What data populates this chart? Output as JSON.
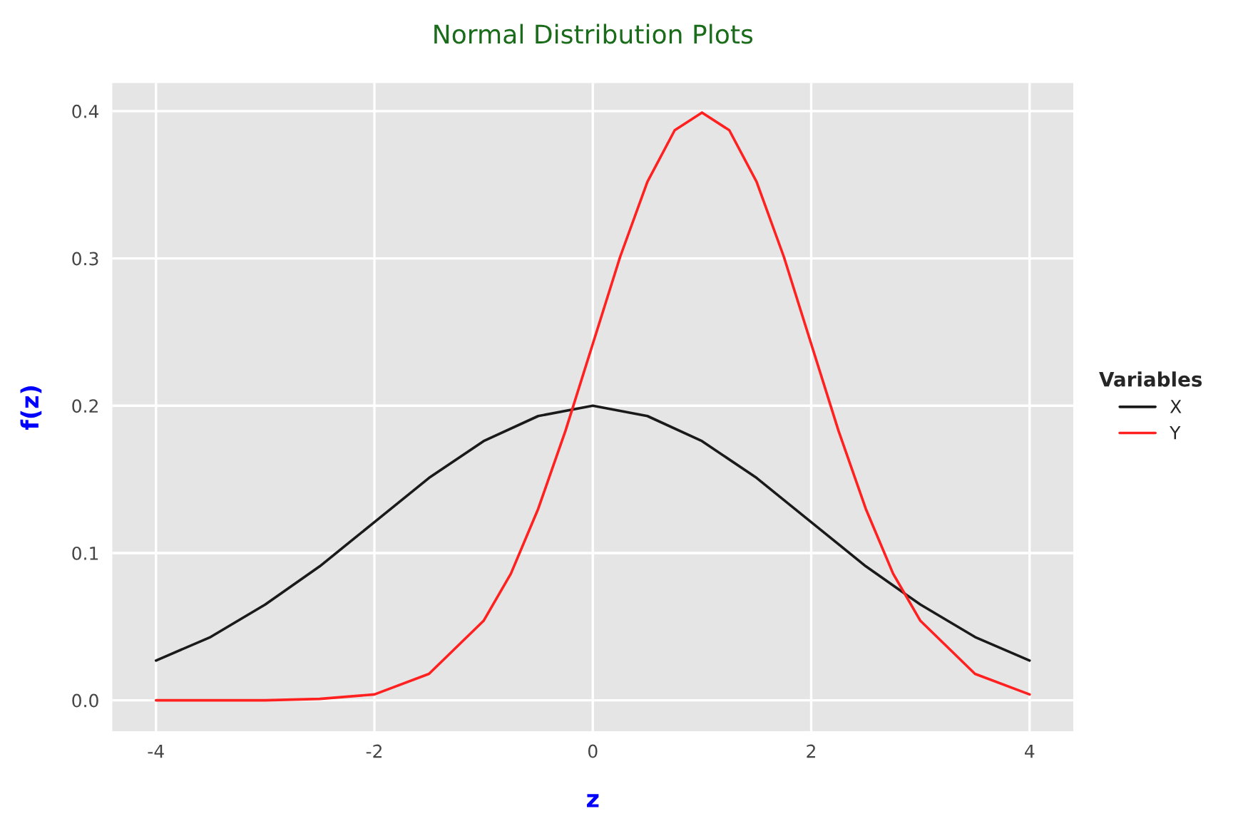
{
  "chart_data": {
    "type": "line",
    "title": "Normal Distribution Plots",
    "xlabel": "z",
    "ylabel": "f(z)",
    "legend_title": "Variables",
    "legend": "right",
    "grid": true,
    "xlim": [
      -4.4,
      4.4
    ],
    "ylim": [
      -0.021,
      0.419
    ],
    "xticks": [
      -4,
      -2,
      0,
      2,
      4
    ],
    "yticks": [
      {
        "value": 0,
        "label": "0.0"
      },
      0.1,
      0.2,
      0.3,
      0.4
    ],
    "series": [
      {
        "name": "X",
        "color": "#1a1a1a",
        "x": [
          -4,
          -3.5,
          -3,
          -2.5,
          -2,
          -1.5,
          -1,
          -0.5,
          0,
          0.5,
          1,
          1.5,
          2,
          2.5,
          3,
          3.5,
          4
        ],
        "values": [
          0.027,
          0.043,
          0.065,
          0.091,
          0.121,
          0.151,
          0.176,
          0.193,
          0.2,
          0.193,
          0.176,
          0.151,
          0.121,
          0.091,
          0.065,
          0.043,
          0.027
        ]
      },
      {
        "name": "Y",
        "color": "#ff2020",
        "x": [
          -4,
          -3.5,
          -3,
          -2.5,
          -2,
          -1.5,
          -1,
          -0.75,
          -0.5,
          -0.25,
          0,
          0.25,
          0.5,
          0.75,
          1,
          1.25,
          1.5,
          1.75,
          2,
          2.25,
          2.5,
          2.75,
          3,
          3.5,
          4
        ],
        "values": [
          0.0,
          0.0,
          0.0,
          0.001,
          0.004,
          0.018,
          0.054,
          0.086,
          0.13,
          0.183,
          0.242,
          0.301,
          0.352,
          0.387,
          0.399,
          0.387,
          0.352,
          0.301,
          0.242,
          0.183,
          0.13,
          0.086,
          0.054,
          0.018,
          0.004
        ]
      }
    ]
  }
}
